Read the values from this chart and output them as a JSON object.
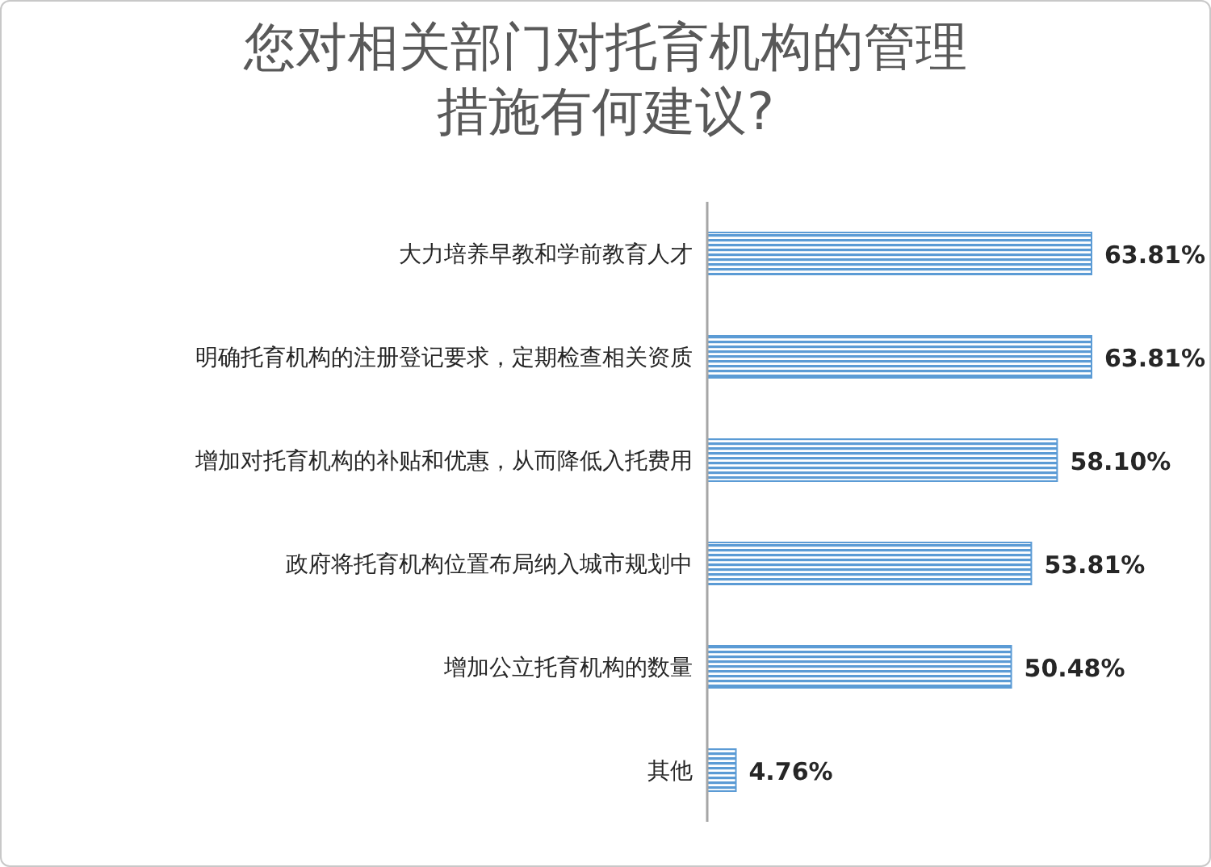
{
  "chart_data": {
    "type": "bar",
    "orientation": "horizontal",
    "title": "您对相关部门对托育机构的管理措施有何建议?",
    "categories": [
      "大力培养早教和学前教育人才",
      "明确托育机构的注册登记要求，定期检查相关资质",
      "增加对托育机构的补贴和优惠，从而降低入托费用",
      "政府将托育机构位置布局纳入城市规划中",
      "增加公立托育机构的数量",
      "其他"
    ],
    "values": [
      63.81,
      63.81,
      58.1,
      53.81,
      50.48,
      4.76
    ],
    "value_labels": [
      "63.81%",
      "63.81%",
      "58.10%",
      "53.81%",
      "50.48%",
      "4.76%"
    ],
    "color": "#5b9bd5"
  }
}
